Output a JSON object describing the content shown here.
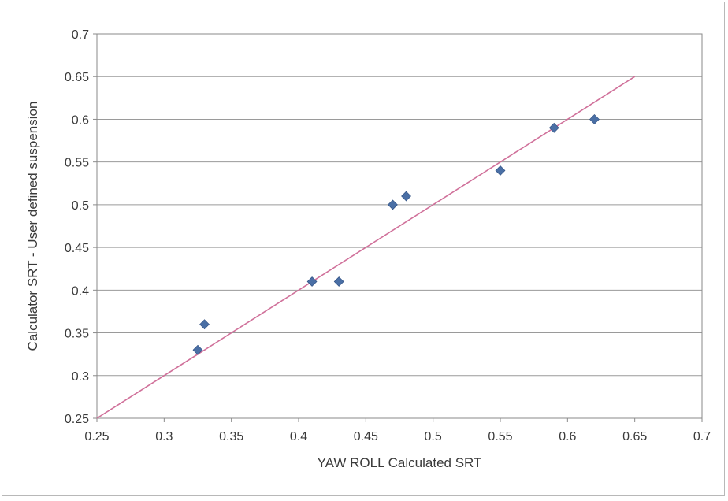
{
  "chart_data": {
    "type": "scatter",
    "title": "",
    "xlabel": "YAW ROLL Calculated SRT",
    "ylabel": "Calculator SRT - User defined suspension",
    "xlim": [
      0.25,
      0.7
    ],
    "ylim": [
      0.25,
      0.7
    ],
    "x_ticks": [
      "0.25",
      "0.3",
      "0.35",
      "0.4",
      "0.45",
      "0.5",
      "0.55",
      "0.6",
      "0.65",
      "0.7"
    ],
    "y_ticks": [
      "0.25",
      "0.3",
      "0.35",
      "0.4",
      "0.45",
      "0.5",
      "0.55",
      "0.6",
      "0.65",
      "0.7"
    ],
    "grid": "horizontal",
    "legend": "none",
    "series": [
      {
        "marker": "diamond",
        "color": "#4a6fa5",
        "points": [
          {
            "x": 0.325,
            "y": 0.33
          },
          {
            "x": 0.33,
            "y": 0.36
          },
          {
            "x": 0.41,
            "y": 0.41
          },
          {
            "x": 0.43,
            "y": 0.41
          },
          {
            "x": 0.47,
            "y": 0.5
          },
          {
            "x": 0.48,
            "y": 0.51
          },
          {
            "x": 0.55,
            "y": 0.54
          },
          {
            "x": 0.59,
            "y": 0.59
          },
          {
            "x": 0.62,
            "y": 0.6
          }
        ]
      }
    ],
    "reference_line": {
      "from": [
        0.25,
        0.25
      ],
      "to": [
        0.65,
        0.65
      ],
      "color": "#d0709a"
    }
  }
}
